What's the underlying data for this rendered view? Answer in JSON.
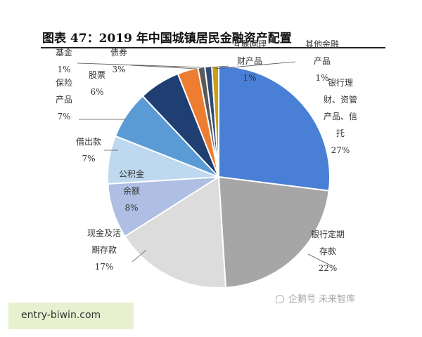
{
  "chart_data": {
    "type": "pie",
    "title": "图表 47：2019 年中国城镇居民金融资产配置",
    "slices": [
      {
        "label": [
          "银行理",
          "财、资管",
          "产品、信",
          "托"
        ],
        "value": 27,
        "value_label": "27%",
        "color": "#4a7fd6"
      },
      {
        "label": [
          "银行定期",
          "存款"
        ],
        "value": 22,
        "value_label": "22%",
        "color": "#a6a6a6"
      },
      {
        "label": [
          "现金及活",
          "期存款"
        ],
        "value": 17,
        "value_label": "17%",
        "color": "#dcdcdc"
      },
      {
        "label": [
          "公积金",
          "余额"
        ],
        "value": 8,
        "value_label": "8%",
        "color": "#aebfe3"
      },
      {
        "label": [
          "借出款"
        ],
        "value": 7,
        "value_label": "7%",
        "color": "#bdd8ef"
      },
      {
        "label": [
          "保险",
          "产品"
        ],
        "value": 7,
        "value_label": "7%",
        "color": "#5b9bd5"
      },
      {
        "label": [
          "股票"
        ],
        "value": 6,
        "value_label": "6%",
        "color": "#1f3f73"
      },
      {
        "label": [
          "债券"
        ],
        "value": 3,
        "value_label": "3%",
        "color": "#ed7d31"
      },
      {
        "label": [
          "基金"
        ],
        "value": 1,
        "value_label": "1%",
        "color": "#5a5a5a"
      },
      {
        "label": [
          "互联网理",
          "财产品"
        ],
        "value": 1,
        "value_label": "1%",
        "color": "#2e4a7a"
      },
      {
        "label": [
          "其他金融",
          "产品"
        ],
        "value": 1,
        "value_label": "1%",
        "color": "#c9a017"
      }
    ]
  },
  "watermark": "企鹅号 未来智库",
  "source_badge": "entry-biwin.com"
}
